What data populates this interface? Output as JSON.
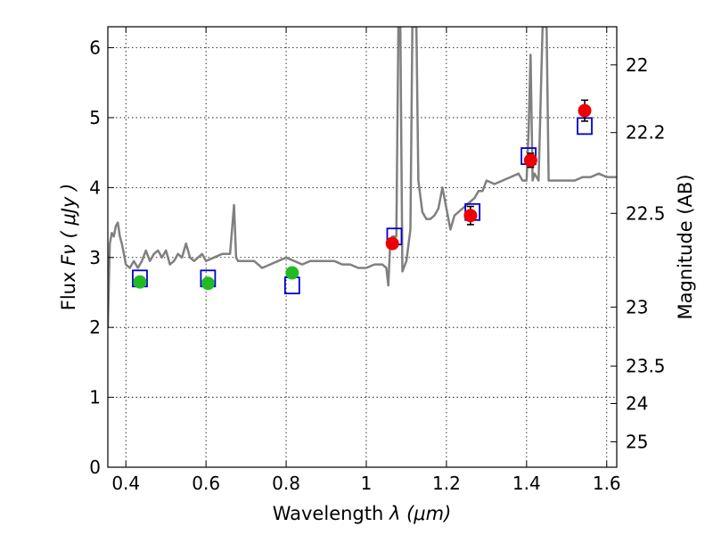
{
  "chart_data": {
    "type": "scatter",
    "xlabel_text": "Wavelength  ",
    "xlabel_math": "λ (μm)",
    "ylabel_text": "Flux  ",
    "ylabel_math": "Fν  ( μJy )",
    "y2label": "Magnitude (AB)",
    "xlim": [
      0.355,
      1.625
    ],
    "ylim": [
      0,
      6.3
    ],
    "grid": true,
    "x_ticks": [
      0.4,
      0.6,
      0.8,
      1.0,
      1.2,
      1.4,
      1.6
    ],
    "x_tick_labels": [
      "0.4",
      "0.6",
      "0.8",
      "1",
      "1.2",
      "1.4",
      "1.6"
    ],
    "y_ticks": [
      0,
      1,
      2,
      3,
      4,
      5,
      6
    ],
    "y_tick_labels": [
      "0",
      "1",
      "2",
      "3",
      "4",
      "5",
      "6"
    ],
    "y2_ticks": [
      22,
      22.2,
      22.5,
      23,
      23.5,
      24,
      25
    ],
    "y2_tick_labels": [
      "22",
      "22.2",
      "22.5",
      "23",
      "23.5",
      "24",
      "25"
    ],
    "colors": {
      "model": "#808080",
      "model_photometry": "#0000cc",
      "optical": "#22bb22",
      "nir": "#ee0000",
      "errorbar": "#000000"
    },
    "series": [
      {
        "kind": "spectrum",
        "x": [
          0.355,
          0.36,
          0.365,
          0.37,
          0.375,
          0.38,
          0.385,
          0.39,
          0.395,
          0.4,
          0.41,
          0.42,
          0.43,
          0.44,
          0.45,
          0.46,
          0.47,
          0.48,
          0.49,
          0.5,
          0.51,
          0.52,
          0.53,
          0.54,
          0.55,
          0.56,
          0.57,
          0.58,
          0.59,
          0.6,
          0.62,
          0.64,
          0.66,
          0.67,
          0.675,
          0.68,
          0.69,
          0.7,
          0.72,
          0.74,
          0.76,
          0.78,
          0.8,
          0.82,
          0.84,
          0.86,
          0.88,
          0.9,
          0.92,
          0.94,
          0.96,
          0.98,
          1.0,
          1.02,
          1.04,
          1.05,
          1.055,
          1.06,
          1.065,
          1.07,
          1.075,
          1.08,
          1.085,
          1.09,
          1.1,
          1.11,
          1.115,
          1.12,
          1.125,
          1.13,
          1.14,
          1.15,
          1.16,
          1.17,
          1.18,
          1.19,
          1.2,
          1.21,
          1.22,
          1.24,
          1.26,
          1.27,
          1.28,
          1.29,
          1.3,
          1.32,
          1.34,
          1.36,
          1.38,
          1.39,
          1.4,
          1.405,
          1.41,
          1.415,
          1.42,
          1.43,
          1.44,
          1.45,
          1.455,
          1.46,
          1.47,
          1.5,
          1.52,
          1.54,
          1.56,
          1.58,
          1.6,
          1.625
        ],
        "y": [
          2.0,
          3.2,
          3.35,
          3.3,
          3.45,
          3.5,
          3.3,
          3.2,
          3.05,
          2.9,
          2.85,
          2.95,
          2.85,
          2.95,
          3.1,
          2.95,
          3.05,
          3.1,
          3.0,
          3.1,
          2.9,
          2.95,
          3.05,
          3.0,
          3.2,
          3.0,
          2.95,
          3.0,
          3.05,
          2.95,
          3.0,
          3.05,
          3.05,
          3.75,
          3.0,
          2.95,
          2.95,
          2.95,
          2.95,
          2.85,
          2.9,
          2.95,
          3.0,
          2.95,
          2.9,
          2.95,
          2.95,
          2.95,
          2.95,
          2.9,
          2.9,
          2.85,
          2.85,
          2.9,
          2.9,
          2.85,
          2.6,
          3.25,
          3.3,
          3.3,
          3.3,
          6.3,
          6.3,
          2.8,
          2.95,
          3.4,
          6.3,
          6.3,
          6.3,
          4.1,
          3.65,
          3.55,
          3.55,
          3.6,
          3.7,
          4.0,
          3.7,
          3.4,
          3.6,
          3.7,
          3.8,
          3.85,
          3.95,
          3.95,
          4.1,
          4.05,
          4.1,
          4.15,
          4.2,
          4.1,
          4.1,
          4.8,
          5.9,
          4.1,
          4.2,
          4.1,
          6.3,
          6.3,
          4.1,
          4.1,
          4.1,
          4.1,
          4.1,
          4.15,
          4.15,
          4.2,
          4.15,
          4.15
        ]
      },
      {
        "kind": "model_photometry",
        "marker": "open-square",
        "x": [
          0.435,
          0.605,
          0.815,
          1.07,
          1.265,
          1.405,
          1.545
        ],
        "y": [
          2.7,
          2.7,
          2.6,
          3.3,
          3.65,
          4.45,
          4.88
        ]
      },
      {
        "kind": "observed_optical",
        "marker": "filled-circle",
        "x": [
          0.435,
          0.605,
          0.815
        ],
        "y": [
          2.65,
          2.63,
          2.78
        ],
        "err": [
          0.07,
          0.06,
          0.07
        ]
      },
      {
        "kind": "observed_nir",
        "marker": "filled-circle",
        "x": [
          1.065,
          1.26,
          1.41,
          1.545
        ],
        "y": [
          3.2,
          3.6,
          4.39,
          5.1
        ],
        "err": [
          0.07,
          0.13,
          0.1,
          0.15
        ]
      }
    ]
  }
}
